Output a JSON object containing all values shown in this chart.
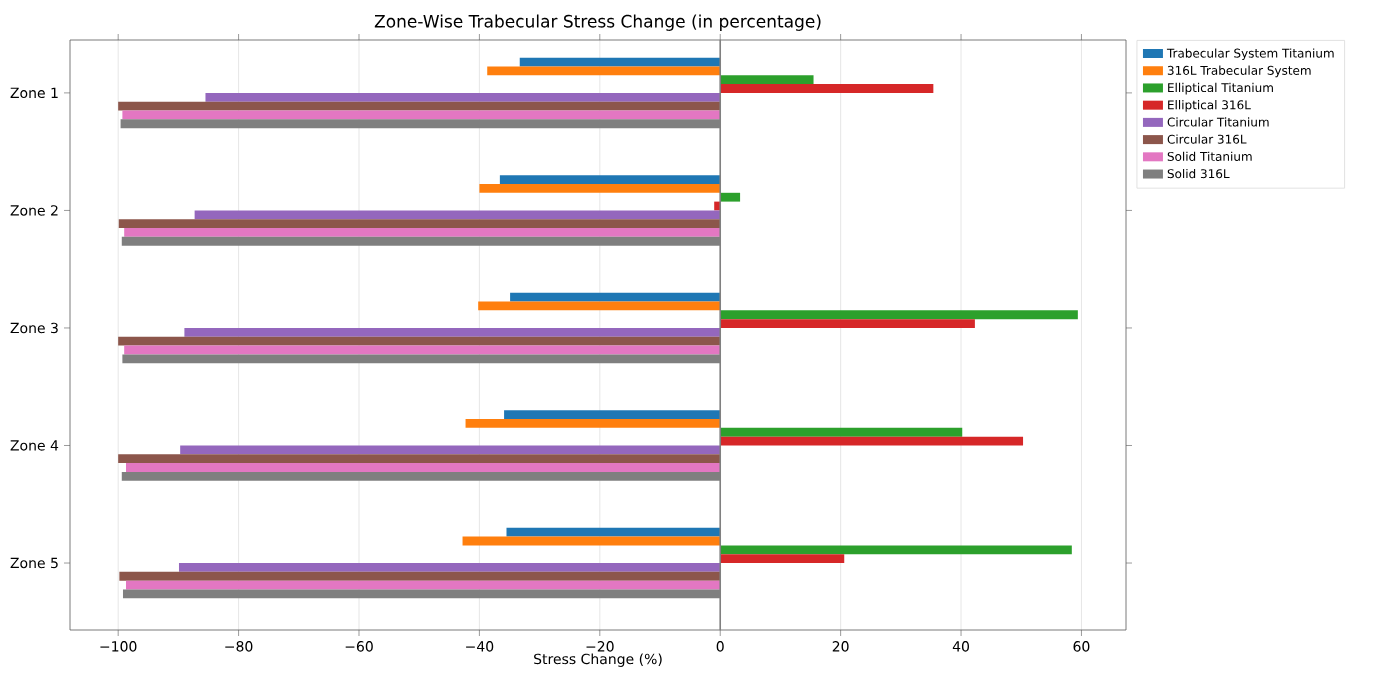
{
  "chart_data": {
    "type": "bar",
    "orientation": "horizontal",
    "title": "Zone-Wise Trabecular Stress Change (in percentage)",
    "xlabel": "Stress Change (%)",
    "categories": [
      "Zone 1",
      "Zone 2",
      "Zone 3",
      "Zone 4",
      "Zone 5"
    ],
    "series": [
      {
        "name": "Trabecular System Titanium",
        "color": "#1f77b4",
        "values": [
          -33.3,
          -36.6,
          -34.9,
          -35.9,
          -35.5
        ]
      },
      {
        "name": "316L Trabecular System",
        "color": "#ff7f0e",
        "values": [
          -38.7,
          -40.0,
          -40.2,
          -42.3,
          -42.8
        ]
      },
      {
        "name": "Elliptical Titanium",
        "color": "#2ca02c",
        "values": [
          15.5,
          3.3,
          59.4,
          40.2,
          58.4
        ]
      },
      {
        "name": "Elliptical 316L",
        "color": "#d62728",
        "values": [
          35.4,
          -1.0,
          42.3,
          50.3,
          20.6
        ]
      },
      {
        "name": "Circular Titanium",
        "color": "#9467bd",
        "values": [
          -85.5,
          -87.3,
          -89.0,
          -89.7,
          -89.9
        ]
      },
      {
        "name": "Circular 316L",
        "color": "#8c564b",
        "values": [
          -100.0,
          -99.9,
          -100.0,
          -100.0,
          -99.8
        ]
      },
      {
        "name": "Solid Titanium",
        "color": "#e377c2",
        "values": [
          -99.3,
          -99.0,
          -99.0,
          -98.7,
          -98.7
        ]
      },
      {
        "name": "Solid 316L",
        "color": "#7f7f7f",
        "values": [
          -99.6,
          -99.4,
          -99.3,
          -99.4,
          -99.2
        ]
      }
    ],
    "xlim": [
      -108,
      67.4
    ],
    "xticks": [
      {
        "value": -100,
        "label": "−100"
      },
      {
        "value": -80,
        "label": "−80"
      },
      {
        "value": -60,
        "label": "−60"
      },
      {
        "value": -40,
        "label": "−40"
      },
      {
        "value": -20,
        "label": "−20"
      },
      0,
      20,
      40,
      60
    ],
    "ref_lines": [
      {
        "axis": "x",
        "value": 0,
        "color": "#808080"
      }
    ],
    "grid": "x",
    "legend": "top right"
  }
}
